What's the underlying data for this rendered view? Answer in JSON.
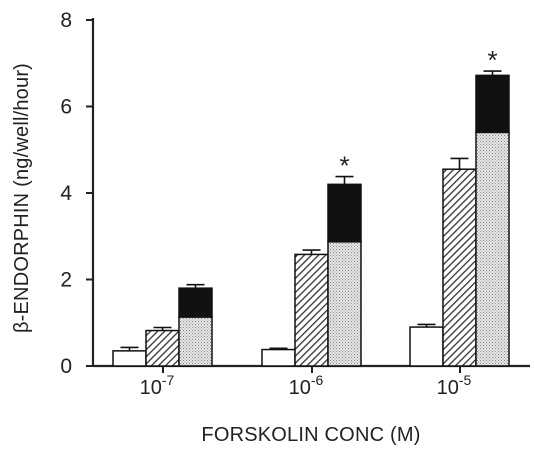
{
  "chart_data": {
    "type": "bar",
    "title": "",
    "xlabel": "FORSKOLIN CONC (M)",
    "ylabel": "β-ENDORPHIN (ng/well/hour)",
    "ylim": [
      0,
      8
    ],
    "yticks": [
      0,
      2,
      4,
      6,
      8
    ],
    "grid": false,
    "legend": "none",
    "categories": [
      {
        "base": "10",
        "exp": "-7"
      },
      {
        "base": "10",
        "exp": "-6"
      },
      {
        "base": "10",
        "exp": "-5"
      }
    ],
    "series": [
      {
        "fill": "white",
        "values": [
          0.35,
          0.38,
          0.9
        ],
        "errors": [
          0.08,
          0.03,
          0.06
        ]
      },
      {
        "fill": "hatched",
        "values": [
          0.82,
          2.58,
          4.55
        ],
        "errors": [
          0.07,
          0.1,
          0.25
        ]
      },
      {
        "fill": "stacked-stipple-black",
        "values": [
          1.8,
          4.2,
          6.72
        ],
        "lower_values": [
          1.13,
          2.87,
          5.4
        ],
        "errors": [
          0.08,
          0.18,
          0.1
        ]
      }
    ],
    "annotations": [
      {
        "text": "*",
        "category_index": 1,
        "series_index": 2
      },
      {
        "text": "*",
        "category_index": 2,
        "series_index": 2
      }
    ]
  }
}
